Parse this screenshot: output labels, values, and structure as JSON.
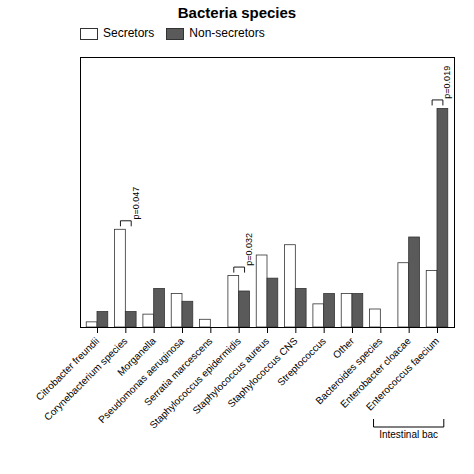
{
  "chart_data": {
    "type": "bar",
    "title": "Bacteria species",
    "categories": [
      "Citrobacter freundii",
      "Corynebacterium species",
      "Morganella",
      "Pseudomonas aeruginosa",
      "Serratia marcescens",
      "Staphylococcus epidermidis",
      "Staphylococcus aureus",
      "Staphylococcus CNS",
      "Streptococcus",
      "Other",
      "Bacteroides species",
      "Enterobacter cloacae",
      "Enterococcus faecium"
    ],
    "series": [
      {
        "name": "Secretors",
        "color": "#ffffff",
        "values": [
          0.02,
          0.38,
          0.05,
          0.13,
          0.03,
          0.2,
          0.28,
          0.32,
          0.09,
          0.13,
          0.07,
          0.25,
          0.22
        ]
      },
      {
        "name": "Non-secretors",
        "color": "#5a5a5a",
        "values": [
          0.06,
          0.06,
          0.15,
          0.1,
          0.0,
          0.14,
          0.19,
          0.15,
          0.13,
          0.13,
          0.0,
          0.35,
          0.85
        ]
      }
    ],
    "ylim": [
      0,
      1.05
    ],
    "tick_labels": "x",
    "legend": "upper left",
    "annotations": [
      {
        "category": "Corynebacterium species",
        "text": "p=0.047"
      },
      {
        "category": "Staphylococcus epidermidis",
        "text": "p=0.032"
      },
      {
        "category": "Enterococcus faecium",
        "text": "p=0.019"
      },
      {
        "categories": [
          "Bacteroides species",
          "Enterobacter cloacae",
          "Enterococcus faecium"
        ],
        "text": "Intestinal bac"
      }
    ]
  }
}
